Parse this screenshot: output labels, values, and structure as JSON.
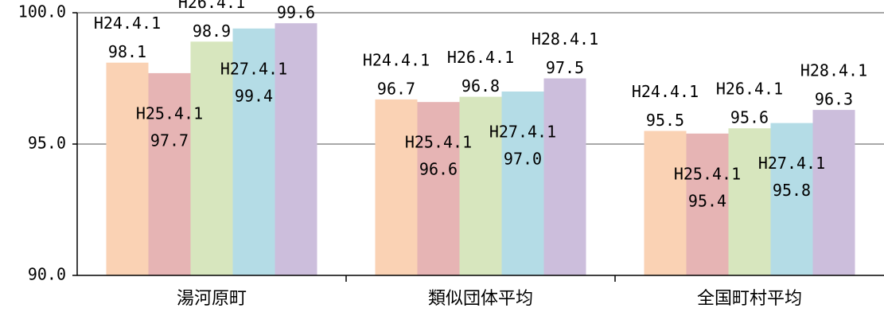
{
  "chart_data": {
    "type": "bar",
    "categories": [
      "湯河原町",
      "類似団体平均",
      "全国町村平均"
    ],
    "series": [
      {
        "name": "H24.4.1",
        "values": [
          98.1,
          96.7,
          95.5
        ],
        "labels": [
          "98.1",
          "96.7",
          "95.5"
        ],
        "color": "#fad2b4"
      },
      {
        "name": "H25.4.1",
        "values": [
          97.7,
          96.6,
          95.4
        ],
        "labels": [
          "97.7",
          "96.6",
          "95.4"
        ],
        "color": "#e6b4b4"
      },
      {
        "name": "H26.4.1",
        "values": [
          98.9,
          96.8,
          95.6
        ],
        "labels": [
          "98.9",
          "96.8",
          "95.6"
        ],
        "color": "#d7e6be"
      },
      {
        "name": "H27.4.1",
        "values": [
          99.4,
          97.0,
          95.8
        ],
        "labels": [
          "99.4",
          "97.0",
          "95.8"
        ],
        "color": "#b4dce6"
      },
      {
        "name": "H28.4.1",
        "values": [
          99.6,
          97.5,
          96.3
        ],
        "labels": [
          "99.6",
          "97.5",
          "96.3"
        ],
        "color": "#ccbedc"
      }
    ],
    "ylim": [
      90.0,
      100.0
    ],
    "yticks": [
      "90.0",
      "95.0",
      "100.0"
    ],
    "grid": true,
    "legend": "none"
  }
}
